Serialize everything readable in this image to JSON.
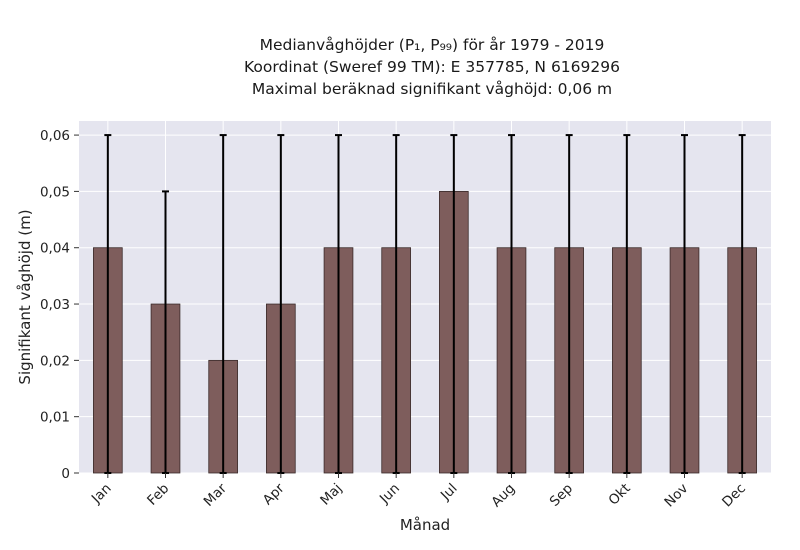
{
  "title_lines": [
    "Medianvåghöjder (P₁, P₉₉) för år 1979 - 2019",
    "Koordinat (Sweref 99 TM): E 357785, N 6169296",
    "Maximal beräknad signifikant våghöjd: 0,06 m"
  ],
  "chart_data": {
    "type": "bar",
    "xlabel": "Månad",
    "ylabel": "Signifikant våghöjd (m)",
    "categories": [
      "Jan",
      "Feb",
      "Mar",
      "Apr",
      "Maj",
      "Jun",
      "Jul",
      "Aug",
      "Sep",
      "Okt",
      "Nov",
      "Dec"
    ],
    "values": [
      0.04,
      0.03,
      0.02,
      0.03,
      0.04,
      0.04,
      0.05,
      0.04,
      0.04,
      0.04,
      0.04,
      0.04
    ],
    "error_low": [
      0,
      0,
      0,
      0,
      0,
      0,
      0,
      0,
      0,
      0,
      0,
      0
    ],
    "error_high": [
      0.06,
      0.05,
      0.06,
      0.06,
      0.06,
      0.06,
      0.06,
      0.06,
      0.06,
      0.06,
      0.06,
      0.06
    ],
    "ylim": [
      0,
      0.0625
    ],
    "yticks": [
      0,
      0.01,
      0.02,
      0.03,
      0.04,
      0.05,
      0.06
    ],
    "ytick_labels": [
      "0",
      "0,01",
      "0,02",
      "0,03",
      "0,04",
      "0,05",
      "0,06"
    ],
    "grid": true,
    "colors": {
      "bar": "#7e5d5c",
      "bar_edge": "#3a2a2a",
      "errorbar": "#000000",
      "plot_background": "#e5e5ef",
      "grid": "#ffffff"
    }
  }
}
